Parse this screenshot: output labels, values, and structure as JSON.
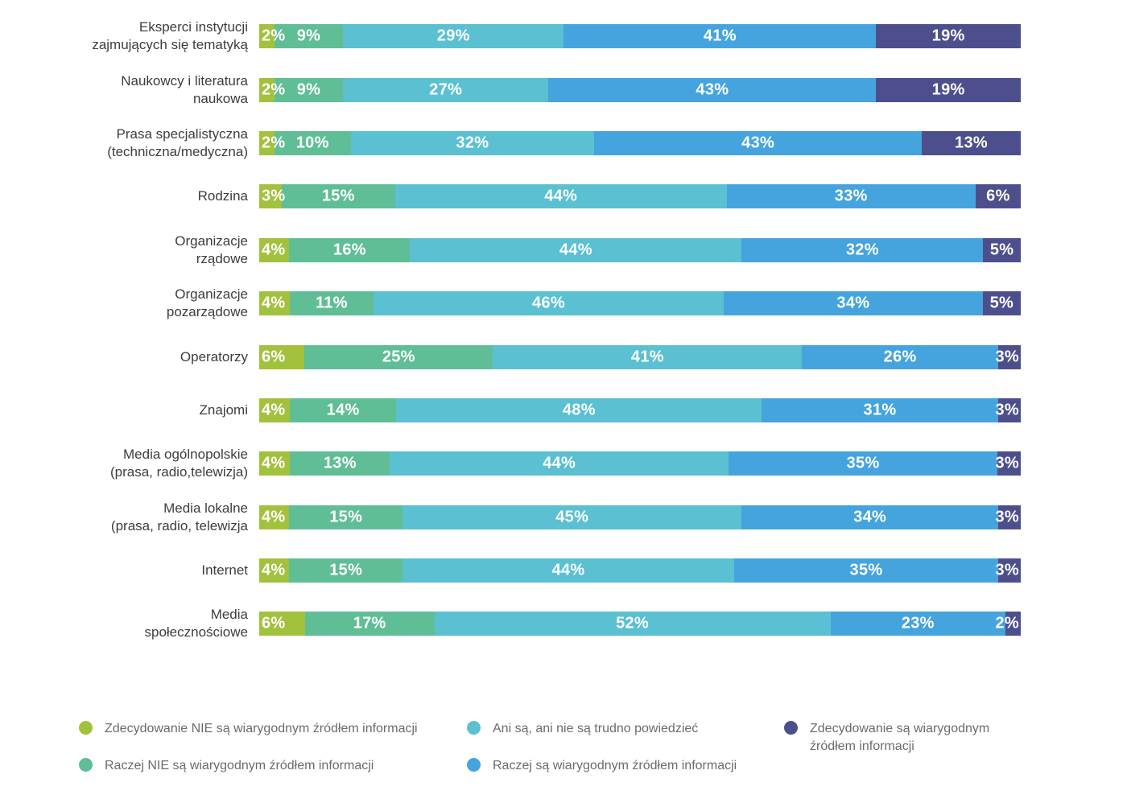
{
  "colors": {
    "background": "#ffffff",
    "category_label_text": "#3d3d3d",
    "legend_text": "#6a6b6d",
    "bar_value_text": "#ffffff"
  },
  "chart_data": {
    "type": "bar",
    "orientation": "horizontal",
    "stacked": true,
    "value_unit": "%",
    "grid": false,
    "axes_visible": false,
    "legend_position": "bottom",
    "categories": [
      "Eksperci instytucji zajmujących się tematyką",
      "Naukowcy i literatura naukowa",
      "Prasa specjalistyczna (techniczna/medyczna)",
      "Rodzina",
      "Organizacje rządowe",
      "Organizacje pozarządowe",
      "Operatorzy",
      "Znajomi",
      "Media ogólnopolskie (prasa, radio,telewizja)",
      "Media lokalne (prasa, radio, telewizja",
      "Internet",
      "Media społecznościowe"
    ],
    "category_label_lines": [
      [
        "Eksperci instytucji",
        "zajmujących się tematyką"
      ],
      [
        "Naukowcy i literatura",
        "naukowa"
      ],
      [
        "Prasa specjalistyczna",
        "(techniczna/medyczna)"
      ],
      [
        "Rodzina"
      ],
      [
        "Organizacje",
        "rządowe"
      ],
      [
        "Organizacje",
        "pozarządowe"
      ],
      [
        "Operatorzy"
      ],
      [
        "Znajomi"
      ],
      [
        "Media ogólnopolskie",
        "(prasa, radio,telewizja)"
      ],
      [
        "Media lokalne",
        "(prasa, radio, telewizja"
      ],
      [
        "Internet"
      ],
      [
        "Media",
        "społecznościowe"
      ]
    ],
    "series": [
      {
        "name": "Zdecydowanie NIE są wiarygodnym źródłem informacji",
        "color": "#a2c13c",
        "values": [
          2,
          2,
          2,
          3,
          4,
          4,
          6,
          4,
          4,
          4,
          4,
          6
        ]
      },
      {
        "name": "Raczej NIE są wiarygodnym źródłem informacji",
        "color": "#5fbe95",
        "values": [
          9,
          9,
          10,
          15,
          16,
          11,
          25,
          14,
          13,
          15,
          15,
          17
        ]
      },
      {
        "name": "Ani są, ani nie są trudno powiedzieć",
        "color": "#5ac0d2",
        "values": [
          29,
          27,
          32,
          44,
          44,
          46,
          41,
          48,
          44,
          45,
          44,
          52
        ]
      },
      {
        "name": "Raczej są wiarygodnym źródłem informacji",
        "color": "#45a4dd",
        "values": [
          41,
          43,
          43,
          33,
          32,
          34,
          26,
          31,
          35,
          34,
          35,
          23
        ]
      },
      {
        "name": "Zdecydowanie są wiarygodnym źródłem informacji",
        "color": "#4d4f8d",
        "values": [
          19,
          19,
          13,
          6,
          5,
          5,
          3,
          3,
          3,
          3,
          3,
          2
        ]
      }
    ]
  },
  "legend": {
    "columns": [
      {
        "items": [
          {
            "series_index": 0,
            "label_lines": [
              "Zdecydowanie NIE są wiarygodnym źródłem informacji"
            ]
          },
          {
            "series_index": 1,
            "label_lines": [
              "Raczej NIE są wiarygodnym źródłem informacji"
            ]
          }
        ]
      },
      {
        "items": [
          {
            "series_index": 2,
            "label_lines": [
              "Ani są, ani nie są trudno powiedzieć"
            ]
          },
          {
            "series_index": 3,
            "label_lines": [
              "Raczej są wiarygodnym źródłem informacji"
            ]
          }
        ]
      },
      {
        "items": [
          {
            "series_index": 4,
            "label_lines": [
              "Zdecydowanie są wiarygodnym",
              "źródłem informacji"
            ]
          }
        ]
      }
    ]
  }
}
